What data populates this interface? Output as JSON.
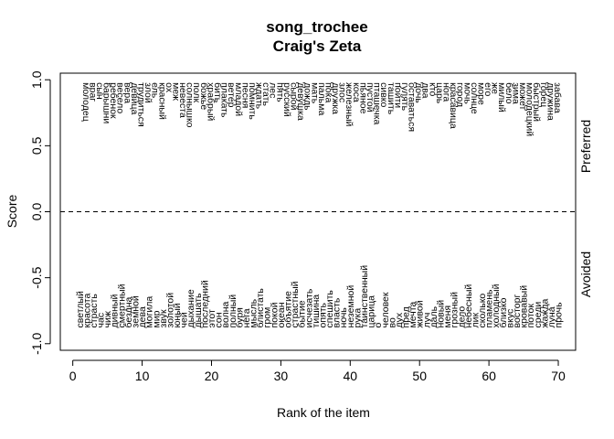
{
  "chart_data": {
    "type": "scatter",
    "title": "song_trochee",
    "subtitle": "Craig's Zeta",
    "xlabel": "Rank of the item",
    "ylabel": "Score",
    "xlim": [
      -1.8,
      72.5
    ],
    "ylim": [
      -1.05,
      1.05
    ],
    "xticks": [
      0,
      10,
      20,
      30,
      40,
      50,
      60,
      70
    ],
    "yticks": [
      -1.0,
      -0.5,
      0.0,
      0.5,
      1.0
    ],
    "reference_line": {
      "y": 0,
      "style": "dashed"
    },
    "side_labels": {
      "top": "Preferred",
      "bottom": "Avoided"
    },
    "preferred": [
      {
        "x": 1,
        "label": "молодец"
      },
      {
        "x": 2,
        "label": "враг"
      },
      {
        "x": 3,
        "label": "сын"
      },
      {
        "x": 4,
        "label": "барышни"
      },
      {
        "x": 5,
        "label": "ребенок"
      },
      {
        "x": 6,
        "label": "весело"
      },
      {
        "x": 7,
        "label": "вера"
      },
      {
        "x": 8,
        "label": "девица"
      },
      {
        "x": 9,
        "label": "трудиться"
      },
      {
        "x": 10,
        "label": "злой"
      },
      {
        "x": 11,
        "label": "ель"
      },
      {
        "x": 12,
        "label": "красный"
      },
      {
        "x": 13,
        "label": "ох"
      },
      {
        "x": 14,
        "label": "меж"
      },
      {
        "x": 15,
        "label": "невеста"
      },
      {
        "x": 16,
        "label": "солнышко"
      },
      {
        "x": 17,
        "label": "полк"
      },
      {
        "x": 18,
        "label": "божье"
      },
      {
        "x": 19,
        "label": "храбрый"
      },
      {
        "x": 20,
        "label": "бить"
      },
      {
        "x": 21,
        "label": "плакать"
      },
      {
        "x": 22,
        "label": "ветер"
      },
      {
        "x": 23,
        "label": "младой"
      },
      {
        "x": 24,
        "label": "песня"
      },
      {
        "x": 25,
        "label": "помнить"
      },
      {
        "x": 26,
        "label": "ждать"
      },
      {
        "x": 27,
        "label": "стать"
      },
      {
        "x": 28,
        "label": "лес"
      },
      {
        "x": 29,
        "label": "пять"
      },
      {
        "x": 30,
        "label": "русский"
      },
      {
        "x": 31,
        "label": "сырой"
      },
      {
        "x": 32,
        "label": "девушка"
      },
      {
        "x": 33,
        "label": "дождь"
      },
      {
        "x": 34,
        "label": "мать"
      },
      {
        "x": 35,
        "label": "пальма"
      },
      {
        "x": 36,
        "label": "пока"
      },
      {
        "x": 37,
        "label": "дружка"
      },
      {
        "x": 38,
        "label": "злос"
      },
      {
        "x": 39,
        "label": "железный"
      },
      {
        "x": 40,
        "label": "коса"
      },
      {
        "x": 41,
        "label": "пьяное"
      },
      {
        "x": 42,
        "label": "пустой"
      },
      {
        "x": 43,
        "label": "пташечка"
      },
      {
        "x": 44,
        "label": "сивко"
      },
      {
        "x": 45,
        "label": "ташить"
      },
      {
        "x": 46,
        "label": "пойти"
      },
      {
        "x": 47,
        "label": "гулять"
      },
      {
        "x": 48,
        "label": "оставаться"
      },
      {
        "x": 49,
        "label": "дочь"
      },
      {
        "x": 50,
        "label": "два"
      },
      {
        "x": 51,
        "label": "кто"
      },
      {
        "x": 52,
        "label": "царь"
      },
      {
        "x": 53,
        "label": "нога"
      },
      {
        "x": 54,
        "label": "красавица"
      },
      {
        "x": 55,
        "label": "город"
      },
      {
        "x": 56,
        "label": "мочь"
      },
      {
        "x": 57,
        "label": "солнце"
      },
      {
        "x": 58,
        "label": "море"
      },
      {
        "x": 59,
        "label": "его"
      },
      {
        "x": 60,
        "label": "же"
      },
      {
        "x": 61,
        "label": "милый"
      },
      {
        "x": 62,
        "label": "бело"
      },
      {
        "x": 63,
        "label": "зима"
      },
      {
        "x": 64,
        "label": "может"
      },
      {
        "x": 65,
        "label": "молодецкий"
      },
      {
        "x": 66,
        "label": "быстрый"
      },
      {
        "x": 67,
        "label": "горец"
      },
      {
        "x": 68,
        "label": "дружина"
      },
      {
        "x": 69,
        "label": "забава"
      }
    ],
    "avoided": [
      {
        "x": 1,
        "label": "светлый"
      },
      {
        "x": 2,
        "label": "красота"
      },
      {
        "x": 3,
        "label": "страсть"
      },
      {
        "x": 4,
        "label": "час"
      },
      {
        "x": 5,
        "label": "чиж"
      },
      {
        "x": 6,
        "label": "дивный"
      },
      {
        "x": 7,
        "label": "смертный"
      },
      {
        "x": 8,
        "label": "бездна"
      },
      {
        "x": 9,
        "label": "земной"
      },
      {
        "x": 10,
        "label": "дева"
      },
      {
        "x": 11,
        "label": "могила"
      },
      {
        "x": 12,
        "label": "мир"
      },
      {
        "x": 13,
        "label": "звук"
      },
      {
        "x": 14,
        "label": "золотой"
      },
      {
        "x": 15,
        "label": "юный"
      },
      {
        "x": 16,
        "label": "чей"
      },
      {
        "x": 17,
        "label": "дыхание"
      },
      {
        "x": 18,
        "label": "дышать"
      },
      {
        "x": 19,
        "label": "последний"
      },
      {
        "x": 20,
        "label": "этот"
      },
      {
        "x": 21,
        "label": "сон"
      },
      {
        "x": 22,
        "label": "волна"
      },
      {
        "x": 23,
        "label": "полный"
      },
      {
        "x": 24,
        "label": "буря"
      },
      {
        "x": 25,
        "label": "нега"
      },
      {
        "x": 26,
        "label": "мысль"
      },
      {
        "x": 27,
        "label": "блистать"
      },
      {
        "x": 28,
        "label": "гром"
      },
      {
        "x": 29,
        "label": "покой"
      },
      {
        "x": 30,
        "label": "океан"
      },
      {
        "x": 31,
        "label": "объятие"
      },
      {
        "x": 32,
        "label": "страстный"
      },
      {
        "x": 33,
        "label": "бытие"
      },
      {
        "x": 34,
        "label": "исчезать"
      },
      {
        "x": 35,
        "label": "тишина"
      },
      {
        "x": 36,
        "label": "опять"
      },
      {
        "x": 37,
        "label": "спешить"
      },
      {
        "x": 38,
        "label": "власть"
      },
      {
        "x": 39,
        "label": "ночь"
      },
      {
        "x": 40,
        "label": "неземной"
      },
      {
        "x": 41,
        "label": "рука"
      },
      {
        "x": 42,
        "label": "таинственный"
      },
      {
        "x": 43,
        "label": "царица"
      },
      {
        "x": 44,
        "label": "о"
      },
      {
        "x": 45,
        "label": "человек"
      },
      {
        "x": 46,
        "label": "во"
      },
      {
        "x": 47,
        "label": "дух"
      },
      {
        "x": 48,
        "label": "пред"
      },
      {
        "x": 49,
        "label": "мечта"
      },
      {
        "x": 50,
        "label": "живой"
      },
      {
        "x": 51,
        "label": "луч"
      },
      {
        "x": 52,
        "label": "даль"
      },
      {
        "x": 53,
        "label": "новый"
      },
      {
        "x": 54,
        "label": "меня"
      },
      {
        "x": 55,
        "label": "грозный"
      },
      {
        "x": 56,
        "label": "дело"
      },
      {
        "x": 57,
        "label": "небесный"
      },
      {
        "x": 58,
        "label": "лик"
      },
      {
        "x": 59,
        "label": "сколько"
      },
      {
        "x": 60,
        "label": "пламень"
      },
      {
        "x": 61,
        "label": "холодный"
      },
      {
        "x": 62,
        "label": "близко"
      },
      {
        "x": 63,
        "label": "вкус"
      },
      {
        "x": 64,
        "label": "восторг"
      },
      {
        "x": 65,
        "label": "кровавый"
      },
      {
        "x": 66,
        "label": "поток"
      },
      {
        "x": 67,
        "label": "среди"
      },
      {
        "x": 68,
        "label": "жажда"
      },
      {
        "x": 69,
        "label": "луна"
      },
      {
        "x": 70,
        "label": "прочь"
      }
    ]
  }
}
